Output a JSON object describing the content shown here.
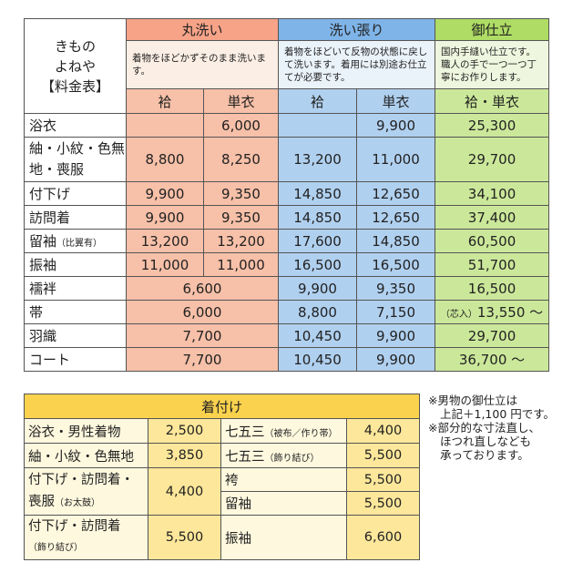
{
  "title": [
    "きもの",
    "よねや",
    "【料金表】"
  ],
  "columns": {
    "maru": {
      "label": "丸洗い",
      "desc": "着物をほどかずそのまま洗います。"
    },
    "hari": {
      "label": "洗い張り",
      "desc": "着物をほどいて反物の状態に戻して洗います。着用には別途お仕立てが必要です。"
    },
    "shitate": {
      "label": "御仕立",
      "desc": "国内手縫い仕立です。職人の手で一つ一つ丁寧にお作りします。"
    }
  },
  "sub": {
    "awase": "袷",
    "hitoe": "単衣",
    "both": "袷・単衣"
  },
  "rows": [
    {
      "name": "浴衣",
      "m_awase": "",
      "m_hitoe": "6,000",
      "h_awase": "",
      "h_hitoe": "9,900",
      "s": "25,300"
    },
    {
      "name": "紬・小紋・色無地・喪服",
      "m_awase": "8,800",
      "m_hitoe": "8,250",
      "h_awase": "13,200",
      "h_hitoe": "11,000",
      "s": "29,700"
    },
    {
      "name": "付下げ",
      "m_awase": "9,900",
      "m_hitoe": "9,350",
      "h_awase": "14,850",
      "h_hitoe": "12,650",
      "s": "34,100"
    },
    {
      "name": "訪問着",
      "m_awase": "9,900",
      "m_hitoe": "9,350",
      "h_awase": "14,850",
      "h_hitoe": "12,650",
      "s": "37,400"
    },
    {
      "name": "留袖",
      "note": "（比翼有）",
      "m_awase": "13,200",
      "m_hitoe": "13,200",
      "h_awase": "17,600",
      "h_hitoe": "14,850",
      "s": "60,500"
    },
    {
      "name": "振袖",
      "m_awase": "11,000",
      "m_hitoe": "11,000",
      "h_awase": "16,500",
      "h_hitoe": "16,500",
      "s": "51,700"
    },
    {
      "name": "襦袢",
      "m": "6,600",
      "h_awase": "9,900",
      "h_hitoe": "9,350",
      "s": "16,500"
    },
    {
      "name": "帯",
      "m": "6,000",
      "h_awase": "8,800",
      "h_hitoe": "7,150",
      "s_prefix": "（芯入）",
      "s": "13,550 ～"
    },
    {
      "name": "羽織",
      "m": "7,700",
      "h_awase": "10,450",
      "h_hitoe": "9,900",
      "s": "29,700"
    },
    {
      "name": "コート",
      "m": "7,700",
      "h_awase": "10,450",
      "h_hitoe": "9,900",
      "s": "36,700 ～"
    }
  ],
  "kitsuke": {
    "label": "着付け",
    "r1": {
      "a": "浴衣・男性着物",
      "ap": "2,500",
      "b": "七五三",
      "bn": "（被布／作り帯）",
      "bp": "4,400"
    },
    "r2": {
      "a": "紬・小紋・色無地",
      "ap": "3,850",
      "b": "七五三",
      "bn": "（飾り結び）",
      "bp": "5,500"
    },
    "r3": {
      "a1": "付下げ・訪問着・",
      "a2": "喪服",
      "an": "（お太鼓）",
      "ap": "4,400",
      "b1": "袴",
      "b1p": "5,500",
      "b2": "留袖",
      "b2p": "5,500"
    },
    "r4": {
      "a1": "付下げ・訪問着",
      "an": "（飾り結び）",
      "ap": "5,500",
      "b": "振袖",
      "bp": "6,600"
    }
  },
  "notes": [
    "※男物の御仕立は",
    "上記＋1,100 円です。",
    "※部分的な寸法直し、",
    "ほつれ直しなども",
    "承っております。"
  ]
}
